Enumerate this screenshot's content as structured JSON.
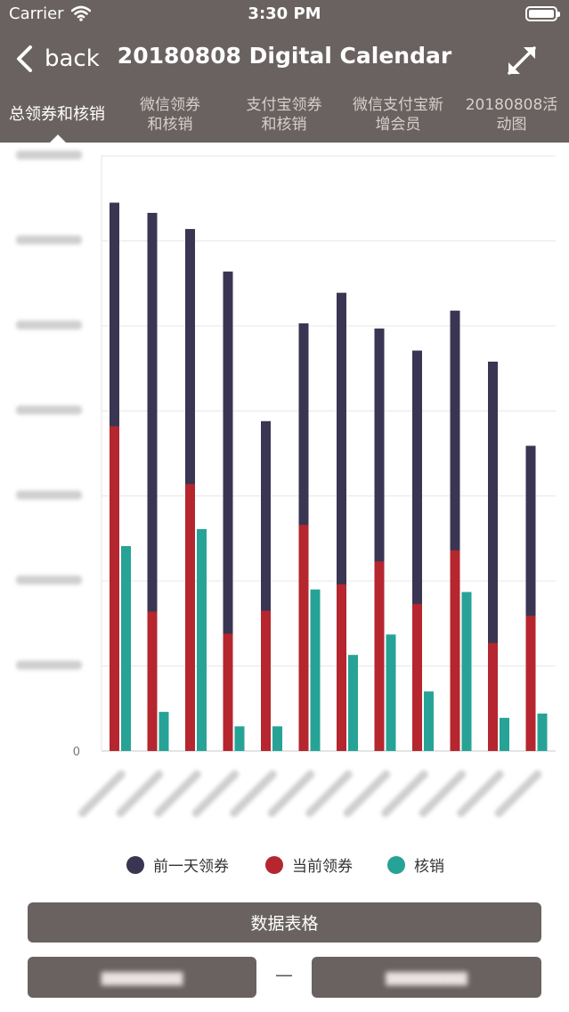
{
  "status_bar": {
    "carrier": "Carrier",
    "time": "3:30 PM"
  },
  "nav": {
    "back_label": "back",
    "title": "20180808 Digital Calendar"
  },
  "tabs": [
    {
      "label": "总领券和核销",
      "active": true
    },
    {
      "label": "微信领券\n和核销",
      "active": false
    },
    {
      "label": "支付宝领券\n和核销",
      "active": false
    },
    {
      "label": "微信支付宝新\n增会员",
      "active": false
    },
    {
      "label": "20180808活\n动图",
      "active": false
    }
  ],
  "chart_data": {
    "type": "bar",
    "stacked_overlay": true,
    "ylim": [
      0,
      7000000
    ],
    "y_ticks": [
      {
        "label": "0",
        "value": 0
      }
    ],
    "y_ticks_blurred_count": 7,
    "x_tick_labels_blurred": true,
    "series": [
      {
        "name": "前一天领券",
        "color": "#3a3552",
        "values": [
          6450000,
          6330000,
          6140000,
          5640000,
          3880000,
          5030000,
          5390000,
          4970000,
          4710000,
          5180000,
          4580000,
          3590000
        ]
      },
      {
        "name": "当前领券",
        "color": "#b5262e",
        "values": [
          3820000,
          1640000,
          3140000,
          1380000,
          1650000,
          2660000,
          1960000,
          2230000,
          1730000,
          2360000,
          1270000,
          1590000
        ]
      },
      {
        "name": "核销",
        "color": "#26a396",
        "values": [
          2410000,
          460000,
          2610000,
          290000,
          290000,
          1900000,
          1130000,
          1370000,
          700000,
          1870000,
          390000,
          440000
        ]
      }
    ],
    "legend_position": "bottom",
    "grid": true
  },
  "buttons": {
    "data_table": "数据表格"
  },
  "date_range": {
    "separator": "—"
  },
  "colors": {
    "bar_bg": "#6a6260",
    "accent_text": "#ffffff"
  }
}
